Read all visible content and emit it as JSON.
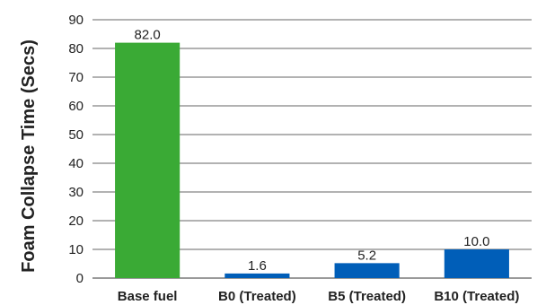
{
  "chart_data": {
    "type": "bar",
    "title": "",
    "xlabel": "",
    "ylabel": "Foam Collapse Time (Secs)",
    "categories": [
      "Base fuel",
      "B0 (Treated)",
      "B5 (Treated)",
      "B10 (Treated)"
    ],
    "values": [
      82.0,
      1.6,
      5.2,
      10.0
    ],
    "data_labels": [
      "82.0",
      "1.6",
      "5.2",
      "10.0"
    ],
    "bar_colors": [
      "#3aaa35",
      "#005eb8",
      "#005eb8",
      "#005eb8"
    ],
    "ylim": [
      0,
      90
    ],
    "yticks": [
      0,
      10,
      20,
      30,
      40,
      50,
      60,
      70,
      80,
      90
    ],
    "grid": true,
    "legend": "none"
  }
}
